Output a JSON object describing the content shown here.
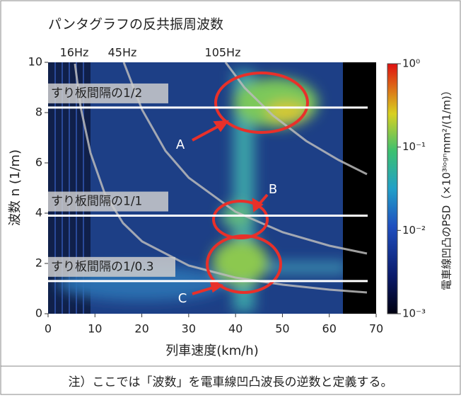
{
  "chart_data": {
    "type": "heatmap",
    "title": "パンタグラフの反共振周波数",
    "x_label": "列車速度(km/h)",
    "y_label": "波数 n (1/m)",
    "xlim": [
      0,
      70
    ],
    "xticks": [
      0,
      10,
      20,
      30,
      40,
      50,
      60,
      70
    ],
    "ylim": [
      0,
      10
    ],
    "yticks": [
      0,
      2,
      4,
      6,
      8,
      10
    ],
    "colorbar": {
      "label": "電車線凹凸のPSD（×10³ˡᵒᵍⁿmm²/(1/m)）",
      "log": true,
      "clim": [
        0.001,
        1
      ],
      "ticks": [
        {
          "value": 0.001,
          "label": "10⁻³"
        },
        {
          "value": 0.01,
          "label": "10⁻²"
        },
        {
          "value": 0.1,
          "label": "10⁻¹"
        },
        {
          "value": 1,
          "label": "10⁰"
        }
      ]
    },
    "frequency_labels": [
      "16Hz",
      "45Hz",
      "105Hz"
    ],
    "reference_lines": [
      {
        "label": "すり板間隔の1/2",
        "y": 8.2
      },
      {
        "label": "すり板間隔の1/1",
        "y": 3.9
      },
      {
        "label": "すり板間隔の1/0.3",
        "y": 1.3
      }
    ],
    "regions": [
      "A",
      "B",
      "C"
    ]
  },
  "note": "注）ここでは「波数」を電車線凹凸波長の逆数と定義する。"
}
